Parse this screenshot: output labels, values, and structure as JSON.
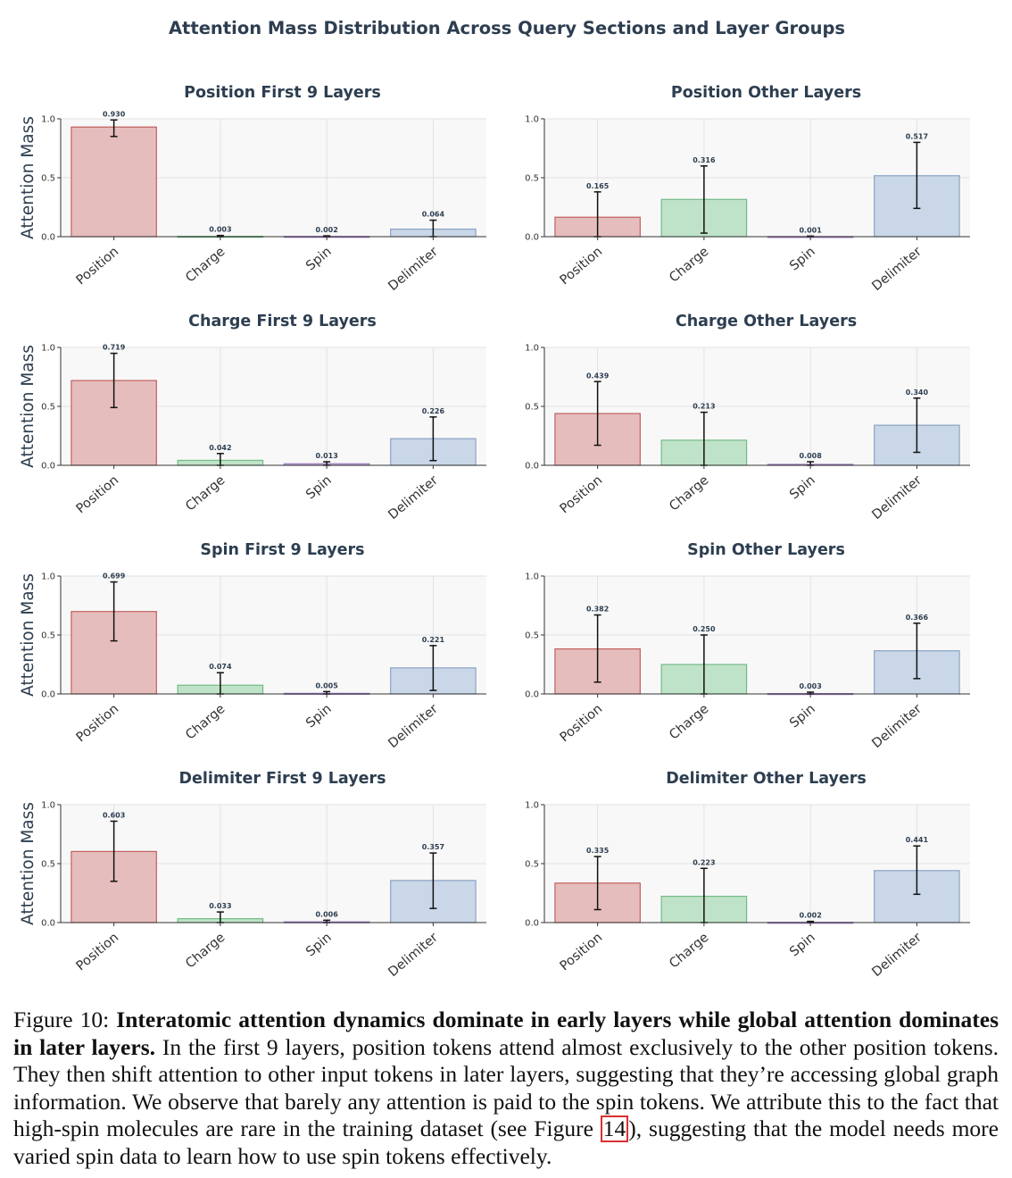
{
  "figure_title": "Attention Mass Distribution Across Query Sections and Layer Groups",
  "y_axis_label": "Attention Mass",
  "colors": {
    "Position": {
      "fill": "#e6bdbd",
      "stroke": "#c0605e"
    },
    "Charge": {
      "fill": "#bfe3c8",
      "stroke": "#73bb86"
    },
    "Spin": {
      "fill": "#ddc9ea",
      "stroke": "#a07cc0"
    },
    "Delimiter": {
      "fill": "#c9d7e8",
      "stroke": "#8aa3c4"
    }
  },
  "chart_data": [
    {
      "type": "bar",
      "title": "Position First 9 Layers",
      "ylabel": "Attention Mass",
      "categories": [
        "Position",
        "Charge",
        "Spin",
        "Delimiter"
      ],
      "values": [
        0.93,
        0.003,
        0.002,
        0.064
      ],
      "value_labels": [
        "0.930",
        "0.003",
        "0.002",
        "0.064"
      ],
      "error_low": [
        0.85,
        0.0,
        0.0,
        0.0
      ],
      "error_high": [
        0.99,
        0.01,
        0.007,
        0.14
      ],
      "ylim": [
        0,
        1.0
      ],
      "yticks": [
        "0.0",
        "0.5",
        "1.0"
      ],
      "grid": true
    },
    {
      "type": "bar",
      "title": "Position Other Layers",
      "ylabel": "",
      "categories": [
        "Position",
        "Charge",
        "Spin",
        "Delimiter"
      ],
      "values": [
        0.165,
        0.316,
        0.001,
        0.517
      ],
      "value_labels": [
        "0.165",
        "0.316",
        "0.001",
        "0.517"
      ],
      "error_low": [
        0.0,
        0.03,
        0.0,
        0.24
      ],
      "error_high": [
        0.38,
        0.6,
        0.005,
        0.8
      ],
      "ylim": [
        0,
        1.0
      ],
      "yticks": [
        "0.0",
        "0.5",
        "1.0"
      ],
      "grid": true
    },
    {
      "type": "bar",
      "title": "Charge First 9 Layers",
      "ylabel": "Attention Mass",
      "categories": [
        "Position",
        "Charge",
        "Spin",
        "Delimiter"
      ],
      "values": [
        0.719,
        0.042,
        0.013,
        0.226
      ],
      "value_labels": [
        "0.719",
        "0.042",
        "0.013",
        "0.226"
      ],
      "error_low": [
        0.49,
        0.0,
        0.0,
        0.04
      ],
      "error_high": [
        0.95,
        0.1,
        0.03,
        0.41
      ],
      "ylim": [
        0,
        1.0
      ],
      "yticks": [
        "0.0",
        "0.5",
        "1.0"
      ],
      "grid": true
    },
    {
      "type": "bar",
      "title": "Charge Other Layers",
      "ylabel": "",
      "categories": [
        "Position",
        "Charge",
        "Spin",
        "Delimiter"
      ],
      "values": [
        0.439,
        0.213,
        0.008,
        0.34
      ],
      "value_labels": [
        "0.439",
        "0.213",
        "0.008",
        "0.340"
      ],
      "error_low": [
        0.17,
        0.0,
        0.0,
        0.11
      ],
      "error_high": [
        0.71,
        0.45,
        0.03,
        0.57
      ],
      "ylim": [
        0,
        1.0
      ],
      "yticks": [
        "0.0",
        "0.5",
        "1.0"
      ],
      "grid": true
    },
    {
      "type": "bar",
      "title": "Spin First 9 Layers",
      "ylabel": "Attention Mass",
      "categories": [
        "Position",
        "Charge",
        "Spin",
        "Delimiter"
      ],
      "values": [
        0.699,
        0.074,
        0.005,
        0.221
      ],
      "value_labels": [
        "0.699",
        "0.074",
        "0.005",
        "0.221"
      ],
      "error_low": [
        0.45,
        0.0,
        0.0,
        0.03
      ],
      "error_high": [
        0.95,
        0.18,
        0.02,
        0.41
      ],
      "ylim": [
        0,
        1.0
      ],
      "yticks": [
        "0.0",
        "0.5",
        "1.0"
      ],
      "grid": true
    },
    {
      "type": "bar",
      "title": "Spin Other Layers",
      "ylabel": "",
      "categories": [
        "Position",
        "Charge",
        "Spin",
        "Delimiter"
      ],
      "values": [
        0.382,
        0.25,
        0.003,
        0.366
      ],
      "value_labels": [
        "0.382",
        "0.250",
        "0.003",
        "0.366"
      ],
      "error_low": [
        0.1,
        0.0,
        0.0,
        0.13
      ],
      "error_high": [
        0.67,
        0.5,
        0.015,
        0.6
      ],
      "ylim": [
        0,
        1.0
      ],
      "yticks": [
        "0.0",
        "0.5",
        "1.0"
      ],
      "grid": true
    },
    {
      "type": "bar",
      "title": "Delimiter First 9 Layers",
      "ylabel": "Attention Mass",
      "categories": [
        "Position",
        "Charge",
        "Spin",
        "Delimiter"
      ],
      "values": [
        0.603,
        0.033,
        0.006,
        0.357
      ],
      "value_labels": [
        "0.603",
        "0.033",
        "0.006",
        "0.357"
      ],
      "error_low": [
        0.35,
        0.0,
        0.0,
        0.12
      ],
      "error_high": [
        0.86,
        0.09,
        0.02,
        0.59
      ],
      "ylim": [
        0,
        1.0
      ],
      "yticks": [
        "0.0",
        "0.5",
        "1.0"
      ],
      "grid": true
    },
    {
      "type": "bar",
      "title": "Delimiter Other Layers",
      "ylabel": "",
      "categories": [
        "Position",
        "Charge",
        "Spin",
        "Delimiter"
      ],
      "values": [
        0.335,
        0.223,
        0.002,
        0.441
      ],
      "value_labels": [
        "0.335",
        "0.223",
        "0.002",
        "0.441"
      ],
      "error_low": [
        0.11,
        0.0,
        0.0,
        0.24
      ],
      "error_high": [
        0.56,
        0.46,
        0.01,
        0.65
      ],
      "ylim": [
        0,
        1.0
      ],
      "yticks": [
        "0.0",
        "0.5",
        "1.0"
      ],
      "grid": true
    }
  ],
  "caption": {
    "label": "Figure 10: ",
    "bold_text": "Interatomic attention dynamics dominate in early layers while global attention dominates in later layers.",
    "text_before_ref": " In the first 9 layers, position tokens attend almost exclusively to the other position tokens. They then shift attention to other input tokens in later layers, suggesting that they’re accessing global graph information. We observe that barely any attention is paid to the spin tokens. We attribute this to the fact that high-spin molecules are rare in the training dataset (see Figure ",
    "ref": "14",
    "text_after_ref": "), suggesting that the model needs more varied spin data to learn how to use spin tokens effectively."
  }
}
